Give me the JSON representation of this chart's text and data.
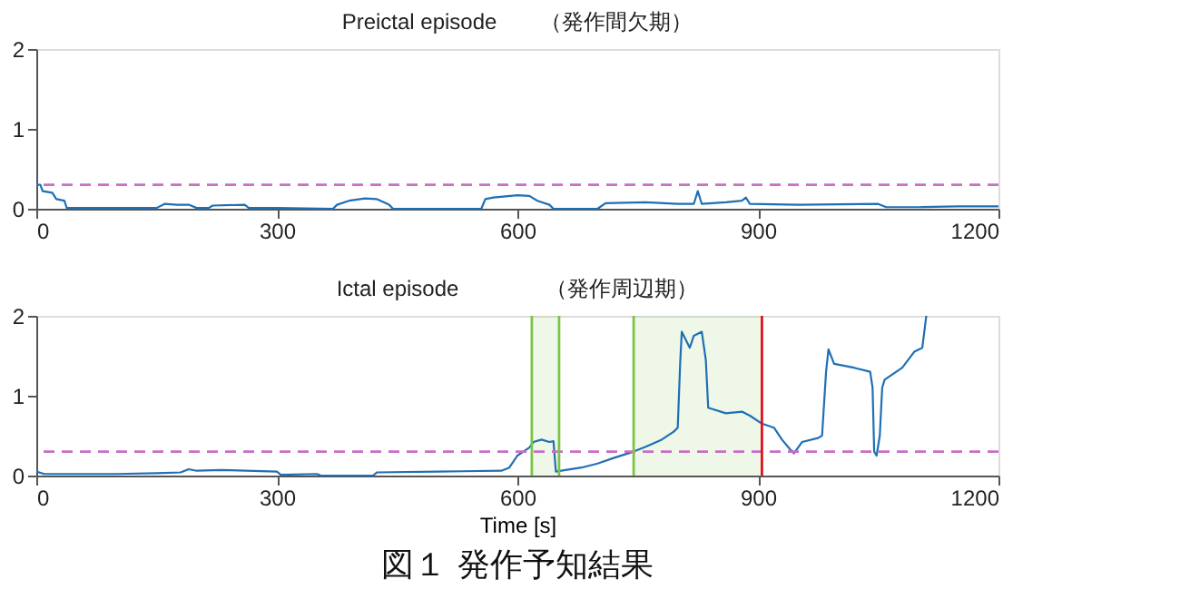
{
  "chart_data": [
    {
      "type": "line",
      "title": "Preictal episode　　（発作間欠期）",
      "xlim": [
        0,
        1200
      ],
      "xticks": [
        0,
        300,
        600,
        900,
        1200
      ],
      "ylim": [
        0,
        2
      ],
      "yticks": [
        0,
        1,
        2
      ],
      "grid": false,
      "x": [
        0,
        5,
        8,
        20,
        25,
        35,
        38,
        150,
        160,
        175,
        190,
        200,
        215,
        220,
        260,
        265,
        300,
        370,
        375,
        390,
        410,
        425,
        440,
        445,
        555,
        560,
        570,
        600,
        615,
        625,
        640,
        645,
        700,
        710,
        760,
        800,
        820,
        825,
        830,
        860,
        880,
        885,
        890,
        950,
        1050,
        1060,
        1100,
        1150,
        1200
      ],
      "series": [
        {
          "color": "#1f6fb5",
          "values": [
            0.3,
            0.3,
            0.22,
            0.2,
            0.12,
            0.1,
            0.01,
            0.01,
            0.06,
            0.05,
            0.05,
            0.01,
            0.01,
            0.04,
            0.05,
            0.01,
            0.01,
            0.0,
            0.05,
            0.1,
            0.13,
            0.12,
            0.05,
            0.0,
            0.0,
            0.12,
            0.14,
            0.17,
            0.16,
            0.1,
            0.05,
            0.0,
            0.0,
            0.07,
            0.08,
            0.06,
            0.06,
            0.22,
            0.06,
            0.08,
            0.1,
            0.14,
            0.06,
            0.05,
            0.06,
            0.02,
            0.02,
            0.03,
            0.03
          ]
        }
      ],
      "ref_lines": [
        {
          "axis": "y",
          "value": 0.3,
          "color": "#c86dc8",
          "line_style": "dashed"
        }
      ]
    },
    {
      "type": "line",
      "title": "Ictal episode　　　　（発作周辺期）",
      "xlabel": "Time [s]",
      "xlim": [
        0,
        1200
      ],
      "xticks": [
        0,
        300,
        600,
        900,
        1200
      ],
      "ylim": [
        0,
        2
      ],
      "yticks": [
        0,
        1,
        2
      ],
      "grid": false,
      "x": [
        0,
        10,
        100,
        150,
        180,
        190,
        200,
        230,
        300,
        305,
        350,
        355,
        420,
        425,
        500,
        580,
        590,
        600,
        615,
        620,
        630,
        640,
        645,
        648,
        660,
        680,
        700,
        720,
        745,
        760,
        780,
        795,
        800,
        803,
        805,
        815,
        820,
        830,
        835,
        838,
        860,
        880,
        890,
        905,
        920,
        930,
        940,
        945,
        955,
        975,
        980,
        985,
        988,
        995,
        1020,
        1040,
        1043,
        1045,
        1048,
        1052,
        1055,
        1058,
        1080,
        1095,
        1105,
        1110
      ],
      "series": [
        {
          "color": "#1f6fb5",
          "values": [
            0.05,
            0.02,
            0.02,
            0.03,
            0.04,
            0.08,
            0.06,
            0.07,
            0.05,
            0.01,
            0.02,
            0.0,
            0.0,
            0.04,
            0.05,
            0.06,
            0.1,
            0.25,
            0.35,
            0.42,
            0.45,
            0.42,
            0.43,
            0.05,
            0.07,
            0.1,
            0.15,
            0.22,
            0.3,
            0.36,
            0.45,
            0.55,
            0.6,
            1.4,
            1.8,
            1.6,
            1.75,
            1.8,
            1.45,
            0.85,
            0.78,
            0.8,
            0.75,
            0.65,
            0.6,
            0.45,
            0.33,
            0.28,
            0.42,
            0.47,
            0.5,
            1.3,
            1.58,
            1.4,
            1.35,
            1.3,
            1.1,
            0.3,
            0.25,
            0.5,
            1.1,
            1.2,
            1.35,
            1.55,
            1.6,
            2.0
          ]
        }
      ],
      "ref_lines": [
        {
          "axis": "y",
          "value": 0.3,
          "color": "#c86dc8",
          "line_style": "dashed"
        },
        {
          "axis": "x",
          "value": 618,
          "color": "#7cc444",
          "line_style": "solid"
        },
        {
          "axis": "x",
          "value": 652,
          "color": "#7cc444",
          "line_style": "solid"
        },
        {
          "axis": "x",
          "value": 745,
          "color": "#7cc444",
          "line_style": "solid"
        },
        {
          "axis": "x",
          "value": 905,
          "color": "#e0141e",
          "line_style": "solid"
        }
      ],
      "bands": [
        {
          "axis": "x",
          "from": 618,
          "to": 652,
          "color": "#7cc444"
        },
        {
          "axis": "x",
          "from": 745,
          "to": 905,
          "color": "#7cc444"
        }
      ],
      "annotations": [
        "図１  発作予知結果"
      ]
    }
  ]
}
